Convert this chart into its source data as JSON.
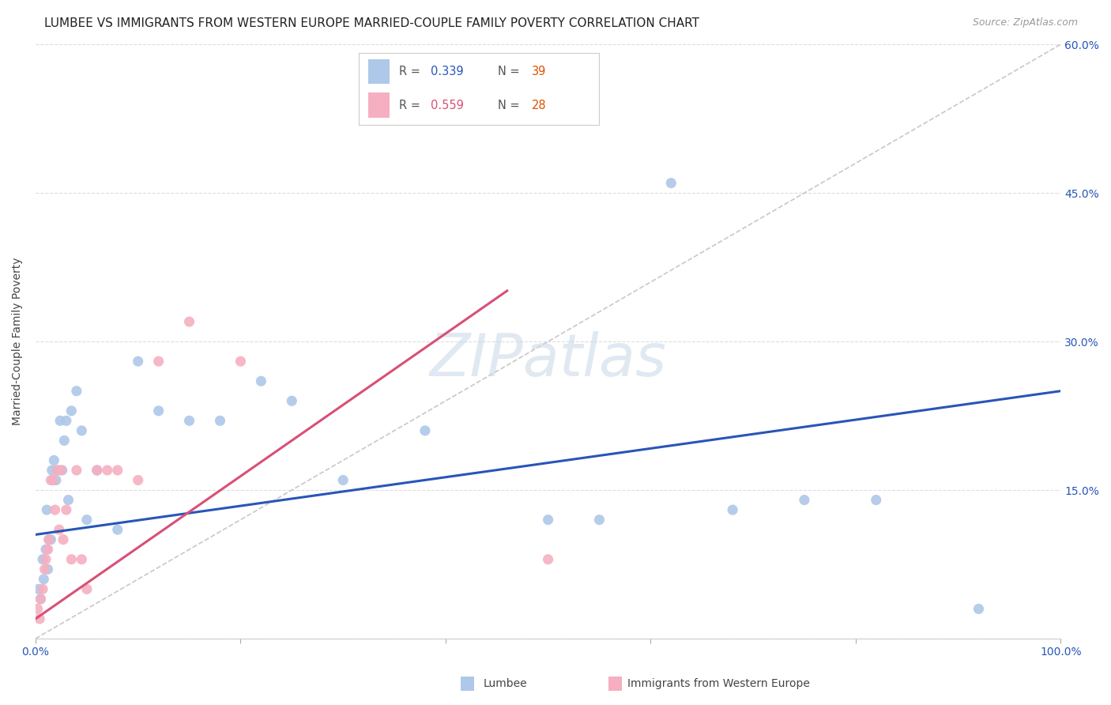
{
  "title": "LUMBEE VS IMMIGRANTS FROM WESTERN EUROPE MARRIED-COUPLE FAMILY POVERTY CORRELATION CHART",
  "source": "Source: ZipAtlas.com",
  "ylabel": "Married-Couple Family Poverty",
  "xlabel": "",
  "xlim": [
    0,
    100
  ],
  "ylim": [
    0,
    60
  ],
  "background_color": "#ffffff",
  "grid_color": "#dddddd",
  "watermark": "ZIPatlas",
  "lumbee_color": "#adc8e8",
  "immigrant_color": "#f5afc0",
  "lumbee_line_color": "#2855b8",
  "immigrant_line_color": "#d85075",
  "diagonal_color": "#c8c8c8",
  "legend_R_color": "#2855b8",
  "legend_N_color": "#e05000",
  "legend_R_immigrant_color": "#d85075",
  "lumbee_x": [
    0.3,
    0.5,
    0.7,
    0.8,
    1.0,
    1.1,
    1.2,
    1.3,
    1.5,
    1.6,
    1.8,
    2.0,
    2.2,
    2.4,
    2.6,
    2.8,
    3.0,
    3.2,
    3.5,
    4.0,
    4.5,
    5.0,
    6.0,
    8.0,
    10.0,
    12.0,
    15.0,
    18.0,
    22.0,
    25.0,
    30.0,
    38.0,
    50.0,
    55.0,
    62.0,
    68.0,
    75.0,
    82.0,
    92.0
  ],
  "lumbee_y": [
    5,
    4,
    8,
    6,
    9,
    13,
    7,
    10,
    10,
    17,
    18,
    16,
    17,
    22,
    17,
    20,
    22,
    14,
    23,
    25,
    21,
    12,
    17,
    11,
    28,
    23,
    22,
    22,
    26,
    24,
    16,
    21,
    12,
    12,
    46,
    13,
    14,
    14,
    3
  ],
  "immigrant_x": [
    0.2,
    0.4,
    0.5,
    0.7,
    0.9,
    1.0,
    1.2,
    1.3,
    1.5,
    1.7,
    1.9,
    2.1,
    2.3,
    2.5,
    2.7,
    3.0,
    3.5,
    4.0,
    4.5,
    5.0,
    6.0,
    7.0,
    8.0,
    10.0,
    12.0,
    15.0,
    20.0,
    50.0
  ],
  "immigrant_y": [
    3,
    2,
    4,
    5,
    7,
    8,
    9,
    10,
    16,
    16,
    13,
    17,
    11,
    17,
    10,
    13,
    8,
    17,
    8,
    5,
    17,
    17,
    17,
    16,
    28,
    32,
    28,
    8
  ],
  "lumbee_line_x0": 0,
  "lumbee_line_y0": 10.5,
  "lumbee_line_x1": 100,
  "lumbee_line_y1": 25.0,
  "immigrant_line_x0": 0,
  "immigrant_line_y0": 2.0,
  "immigrant_line_x1": 50,
  "immigrant_line_y1": 38.0,
  "title_fontsize": 11,
  "axis_label_fontsize": 10,
  "tick_fontsize": 10,
  "legend_fontsize": 11
}
